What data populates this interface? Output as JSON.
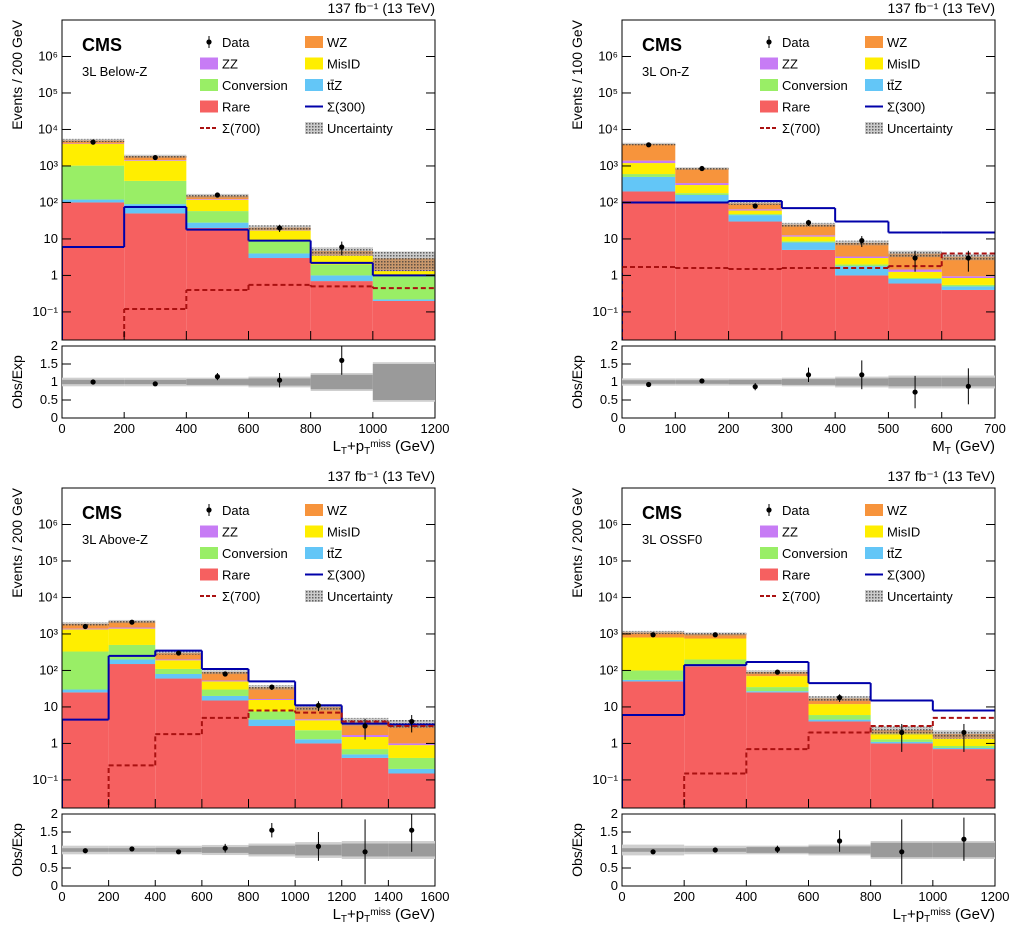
{
  "chart_data": [
    {
      "type": "histogram",
      "experiment": "CMS",
      "region": "3L Below-Z",
      "lumi": "137 fb⁻¹ (13 TeV)",
      "ylabel": "Events / 200 GeV",
      "ratio_ylabel": "Obs/Exp",
      "xlabel": [
        {
          "t": "L"
        },
        {
          "sub": "T"
        },
        {
          "t": "+p"
        },
        {
          "sub": "T"
        },
        {
          "sup": "miss"
        },
        {
          "t": " (GeV)"
        }
      ],
      "bins": [
        0,
        200,
        400,
        600,
        800,
        1000,
        1200
      ],
      "xlim": [
        0,
        1200
      ],
      "xticks": [
        0,
        200,
        400,
        600,
        800,
        1000,
        1200
      ],
      "ylim": [
        0.017,
        10000000
      ],
      "log": true,
      "yticks": [
        {
          "value": 0.1,
          "label": "10⁻¹"
        },
        1,
        10,
        {
          "value": 100,
          "label": "10²"
        },
        {
          "value": 1000,
          "label": "10³"
        },
        {
          "value": 10000,
          "label": "10⁴"
        },
        {
          "value": 100000,
          "label": "10⁵"
        },
        {
          "value": 1000000,
          "label": "10⁶"
        }
      ],
      "ratio_ylim": [
        0,
        2
      ],
      "ratio_yticks": [
        0,
        0.5,
        1,
        1.5,
        2
      ],
      "series": [
        {
          "name": "Rare",
          "color": "#f66060",
          "values": [
            100,
            50,
            20,
            3,
            0.7,
            0.2
          ]
        },
        {
          "name": "tt̄Z",
          "color": "#63c6f7",
          "values": [
            20,
            40,
            8,
            1,
            0.3,
            0.02
          ]
        },
        {
          "name": "Conversion",
          "color": "#99ee66",
          "values": [
            900,
            300,
            30,
            5,
            1,
            0.8
          ]
        },
        {
          "name": "MisID",
          "color": "#ffee00",
          "values": [
            3000,
            1000,
            60,
            8,
            1.5,
            0.3
          ]
        },
        {
          "name": "ZZ",
          "color": "#c77cf5",
          "values": [
            100,
            60,
            5,
            0.5,
            0.2,
            0.1
          ]
        },
        {
          "name": "WZ",
          "color": "#f7943c",
          "values": [
            900,
            400,
            30,
            3,
            1,
            1.5
          ]
        }
      ],
      "data": {
        "name": "Data",
        "color": "#000000",
        "values": [
          4500,
          1700,
          160,
          20,
          6,
          null
        ]
      },
      "signals": [
        {
          "name": "Σ(300)",
          "color": "#0000aa",
          "dashed": false,
          "values": [
            6,
            75,
            18,
            9,
            2.2,
            1
          ]
        },
        {
          "name": "Σ(700)",
          "color": "#aa1111",
          "dashed": true,
          "values": [
            null,
            0.12,
            0.4,
            0.55,
            0.5,
            0.45
          ]
        }
      ],
      "uncertainty": {
        "name": "Uncertainty",
        "values": [
          0.1,
          0.1,
          0.12,
          0.15,
          0.25,
          0.55
        ]
      },
      "ratio": [
        1.0,
        0.95,
        1.15,
        1.05,
        1.6,
        null
      ],
      "ratio_err": [
        0.02,
        0.03,
        0.1,
        0.2,
        0.4,
        null
      ],
      "band_total": [
        0.12,
        0.12,
        0.12,
        0.15,
        0.25,
        0.55
      ],
      "band_stat": [
        0.06,
        0.06,
        0.08,
        0.1,
        0.2,
        0.5
      ]
    },
    {
      "type": "histogram",
      "experiment": "CMS",
      "region": "3L On-Z",
      "lumi": "137 fb⁻¹ (13 TeV)",
      "ylabel": "Events / 100 GeV",
      "ratio_ylabel": "Obs/Exp",
      "xlabel": [
        {
          "t": "M"
        },
        {
          "sub": "T"
        },
        {
          "t": " (GeV)"
        }
      ],
      "bins": [
        0,
        100,
        200,
        300,
        400,
        500,
        600,
        700
      ],
      "xlim": [
        0,
        700
      ],
      "xticks": [
        0,
        100,
        200,
        300,
        400,
        500,
        600,
        700
      ],
      "ylim": [
        0.017,
        10000000
      ],
      "log": true,
      "yticks": [
        {
          "value": 0.1,
          "label": "10⁻¹"
        },
        1,
        10,
        {
          "value": 100,
          "label": "10²"
        },
        {
          "value": 1000,
          "label": "10³"
        },
        {
          "value": 10000,
          "label": "10⁴"
        },
        {
          "value": 100000,
          "label": "10⁵"
        },
        {
          "value": 1000000,
          "label": "10⁶"
        }
      ],
      "ratio_ylim": [
        0,
        2
      ],
      "ratio_yticks": [
        0,
        0.5,
        1,
        1.5,
        2
      ],
      "series": [
        {
          "name": "Rare",
          "color": "#f66060",
          "values": [
            200,
            100,
            30,
            5,
            1,
            0.6,
            0.4
          ]
        },
        {
          "name": "tt̄Z",
          "color": "#63c6f7",
          "values": [
            300,
            60,
            15,
            3,
            0.8,
            0.2,
            0.1
          ]
        },
        {
          "name": "Conversion",
          "color": "#99ee66",
          "values": [
            100,
            20,
            3,
            0.6,
            0.2,
            0.05,
            0.05
          ]
        },
        {
          "name": "MisID",
          "color": "#ffee00",
          "values": [
            600,
            120,
            12,
            3,
            1,
            0.4,
            0.3
          ]
        },
        {
          "name": "ZZ",
          "color": "#c77cf5",
          "values": [
            200,
            40,
            5,
            1,
            0.3,
            0.2,
            0.1
          ]
        },
        {
          "name": "WZ",
          "color": "#f7943c",
          "values": [
            2600,
            510,
            30,
            12,
            4.5,
            2.5,
            2.3
          ]
        }
      ],
      "data": {
        "name": "Data",
        "color": "#000000",
        "values": [
          3800,
          850,
          80,
          28,
          9,
          3,
          3
        ]
      },
      "signals": [
        {
          "name": "Σ(300)",
          "color": "#0000aa",
          "dashed": false,
          "values": [
            100,
            100,
            110,
            70,
            30,
            15,
            15
          ]
        },
        {
          "name": "Σ(700)",
          "color": "#aa1111",
          "dashed": true,
          "values": [
            1.7,
            1.6,
            1.5,
            1.6,
            1.6,
            1.8,
            4
          ]
        }
      ],
      "uncertainty": {
        "name": "Uncertainty",
        "values": [
          0.08,
          0.08,
          0.1,
          0.12,
          0.15,
          0.2,
          0.2
        ]
      },
      "ratio": [
        0.93,
        1.03,
        0.87,
        1.2,
        1.2,
        0.72,
        0.88
      ],
      "ratio_err": [
        0.02,
        0.05,
        0.1,
        0.2,
        0.4,
        0.45,
        0.5
      ],
      "band_total": [
        0.1,
        0.1,
        0.1,
        0.12,
        0.15,
        0.18,
        0.18
      ],
      "band_stat": [
        0.05,
        0.05,
        0.06,
        0.08,
        0.1,
        0.12,
        0.12
      ]
    },
    {
      "type": "histogram",
      "experiment": "CMS",
      "region": "3L Above-Z",
      "lumi": "137 fb⁻¹ (13 TeV)",
      "ylabel": "Events / 200 GeV",
      "ratio_ylabel": "Obs/Exp",
      "xlabel": [
        {
          "t": "L"
        },
        {
          "sub": "T"
        },
        {
          "t": "+p"
        },
        {
          "sub": "T"
        },
        {
          "sup": "miss"
        },
        {
          "t": " (GeV)"
        }
      ],
      "bins": [
        0,
        200,
        400,
        600,
        800,
        1000,
        1200,
        1400,
        1600
      ],
      "xlim": [
        0,
        1600
      ],
      "xticks": [
        0,
        200,
        400,
        600,
        800,
        1000,
        1200,
        1400,
        1600
      ],
      "ylim": [
        0.017,
        10000000
      ],
      "log": true,
      "yticks": [
        {
          "value": 0.1,
          "label": "10⁻¹"
        },
        1,
        10,
        {
          "value": 100,
          "label": "10²"
        },
        {
          "value": 1000,
          "label": "10³"
        },
        {
          "value": 10000,
          "label": "10⁴"
        },
        {
          "value": 100000,
          "label": "10⁵"
        },
        {
          "value": 1000000,
          "label": "10⁶"
        }
      ],
      "ratio_ylim": [
        0,
        2
      ],
      "ratio_yticks": [
        0,
        0.5,
        1,
        1.5,
        2
      ],
      "series": [
        {
          "name": "Rare",
          "color": "#f66060",
          "values": [
            25,
            150,
            60,
            15,
            3,
            1,
            0.4,
            0.15
          ]
        },
        {
          "name": "tt̄Z",
          "color": "#63c6f7",
          "values": [
            5,
            50,
            20,
            5,
            1.5,
            0.3,
            0.1,
            0.05
          ]
        },
        {
          "name": "Conversion",
          "color": "#99ee66",
          "values": [
            300,
            300,
            30,
            10,
            3,
            1,
            0.2,
            0.2
          ]
        },
        {
          "name": "MisID",
          "color": "#ffee00",
          "values": [
            1000,
            900,
            80,
            20,
            8,
            2,
            0.8,
            0.5
          ]
        },
        {
          "name": "ZZ",
          "color": "#c77cf5",
          "values": [
            70,
            100,
            10,
            3,
            1,
            0.3,
            0.2,
            0.1
          ]
        },
        {
          "name": "WZ",
          "color": "#f7943c",
          "values": [
            500,
            700,
            100,
            37,
            18,
            5.4,
            2.3,
            2.5
          ]
        }
      ],
      "data": {
        "name": "Data",
        "color": "#000000",
        "values": [
          1600,
          2100,
          300,
          80,
          35,
          11,
          3,
          4
        ]
      },
      "signals": [
        {
          "name": "Σ(300)",
          "color": "#0000aa",
          "dashed": false,
          "values": [
            4.5,
            250,
            350,
            110,
            50,
            11,
            3.5,
            3.3
          ]
        },
        {
          "name": "Σ(700)",
          "color": "#aa1111",
          "dashed": true,
          "values": [
            null,
            0.25,
            1.8,
            5,
            8,
            7,
            4,
            3
          ]
        }
      ],
      "uncertainty": {
        "name": "Uncertainty",
        "values": [
          0.1,
          0.1,
          0.1,
          0.12,
          0.15,
          0.2,
          0.25,
          0.25
        ]
      },
      "ratio": [
        0.98,
        1.03,
        0.95,
        1.05,
        1.55,
        1.1,
        0.95,
        1.55
      ],
      "ratio_err": [
        0.03,
        0.03,
        0.05,
        0.12,
        0.2,
        0.4,
        0.9,
        0.6
      ],
      "band_total": [
        0.12,
        0.12,
        0.12,
        0.14,
        0.18,
        0.22,
        0.25,
        0.25
      ],
      "band_stat": [
        0.05,
        0.05,
        0.06,
        0.08,
        0.12,
        0.15,
        0.18,
        0.18
      ]
    },
    {
      "type": "histogram",
      "experiment": "CMS",
      "region": "3L OSSF0",
      "lumi": "137 fb⁻¹ (13 TeV)",
      "ylabel": "Events / 200 GeV",
      "ratio_ylabel": "Obs/Exp",
      "xlabel": [
        {
          "t": "L"
        },
        {
          "sub": "T"
        },
        {
          "t": "+p"
        },
        {
          "sub": "T"
        },
        {
          "sup": "miss"
        },
        {
          "t": " (GeV)"
        }
      ],
      "bins": [
        0,
        200,
        400,
        600,
        800,
        1000,
        1200
      ],
      "xlim": [
        0,
        1200
      ],
      "xticks": [
        0,
        200,
        400,
        600,
        800,
        1000,
        1200
      ],
      "ylim": [
        0.017,
        10000000
      ],
      "log": true,
      "yticks": [
        {
          "value": 0.1,
          "label": "10⁻¹"
        },
        1,
        10,
        {
          "value": 100,
          "label": "10²"
        },
        {
          "value": 1000,
          "label": "10³"
        },
        {
          "value": 10000,
          "label": "10⁴"
        },
        {
          "value": 100000,
          "label": "10⁵"
        },
        {
          "value": 1000000,
          "label": "10⁶"
        }
      ],
      "ratio_ylim": [
        0,
        2
      ],
      "ratio_yticks": [
        0,
        0.5,
        1,
        1.5,
        2
      ],
      "series": [
        {
          "name": "Rare",
          "color": "#f66060",
          "values": [
            50,
            130,
            25,
            4,
            1,
            0.7
          ]
        },
        {
          "name": "tt̄Z",
          "color": "#63c6f7",
          "values": [
            5,
            10,
            2,
            0.5,
            0.1,
            0.05
          ]
        },
        {
          "name": "Conversion",
          "color": "#99ee66",
          "values": [
            45,
            60,
            8,
            1.5,
            0.2,
            0.1
          ]
        },
        {
          "name": "MisID",
          "color": "#ffee00",
          "values": [
            700,
            550,
            35,
            6,
            0.6,
            0.5
          ]
        },
        {
          "name": "ZZ",
          "color": "#c77cf5",
          "values": [
            0.5,
            0.5,
            0.1,
            0.05,
            0.02,
            0.02
          ]
        },
        {
          "name": "WZ",
          "color": "#f7943c",
          "values": [
            300,
            250,
            20,
            5,
            0.4,
            0.45
          ]
        }
      ],
      "data": {
        "name": "Data",
        "color": "#000000",
        "values": [
          950,
          950,
          90,
          18,
          2,
          2
        ]
      },
      "signals": [
        {
          "name": "Σ(300)",
          "color": "#0000aa",
          "dashed": false,
          "values": [
            6,
            140,
            170,
            45,
            15,
            8
          ]
        },
        {
          "name": "Σ(700)",
          "color": "#aa1111",
          "dashed": true,
          "values": [
            null,
            0.15,
            0.7,
            2,
            3,
            5
          ]
        }
      ],
      "uncertainty": {
        "name": "Uncertainty",
        "values": [
          0.1,
          0.1,
          0.12,
          0.15,
          0.25,
          0.25
        ]
      },
      "ratio": [
        0.95,
        1.0,
        1.02,
        1.25,
        0.95,
        1.3
      ],
      "ratio_err": [
        0.03,
        0.03,
        0.1,
        0.3,
        0.9,
        0.6
      ],
      "band_total": [
        0.15,
        0.12,
        0.12,
        0.15,
        0.25,
        0.25
      ],
      "band_stat": [
        0.05,
        0.05,
        0.08,
        0.1,
        0.2,
        0.2
      ]
    }
  ]
}
